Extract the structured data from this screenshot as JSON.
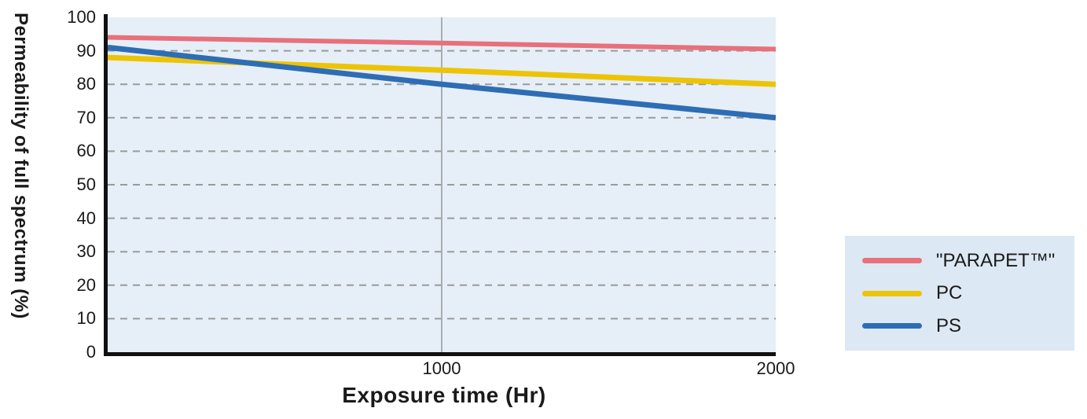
{
  "chart_data": {
    "type": "line",
    "title": "",
    "xlabel": "Exposure time (Hr)",
    "ylabel": "Permeability of full spectrum (%)",
    "xlim": [
      0,
      2000
    ],
    "ylim": [
      0,
      100
    ],
    "x_ticks": [
      1000,
      2000
    ],
    "y_ticks": [
      0,
      10,
      20,
      30,
      40,
      50,
      60,
      70,
      80,
      90,
      100
    ],
    "grid": {
      "horizontal": "dashed",
      "vertical_reference_line_at_x": 1000
    },
    "legend_position": "outside-right-bottom",
    "series": [
      {
        "name": "\"PARAPET™\"",
        "color": "#e8707b",
        "x": [
          0,
          1000,
          2000
        ],
        "values": [
          94,
          92.3,
          90.5
        ]
      },
      {
        "name": "PC",
        "color": "#edc405",
        "x": [
          0,
          1000,
          2000
        ],
        "values": [
          88,
          84.2,
          80
        ]
      },
      {
        "name": "PS",
        "color": "#2e6db4",
        "x": [
          0,
          1000,
          2000
        ],
        "values": [
          91,
          80,
          70
        ]
      }
    ]
  },
  "colors": {
    "plot_background": "#e6eff7",
    "legend_background": "#dce9f4",
    "gridline": "#9a9a9a",
    "reference_line": "#a8aeb2",
    "axis": "#111111",
    "text": "#1a1a1a"
  }
}
